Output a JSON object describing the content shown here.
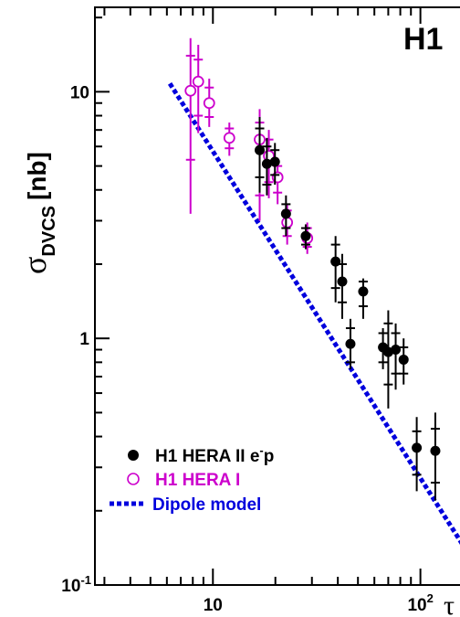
{
  "chart_data": {
    "type": "scatter",
    "title": "H1",
    "ylabel": "σ",
    "ylabel_sub": "DVCS",
    "ylabel_unit": "[nb]",
    "xlabel": "τ",
    "xscale": "log",
    "yscale": "log",
    "xlim": [
      2.7,
      190
    ],
    "ylim": [
      0.1,
      22
    ],
    "x_ticks": [
      {
        "value": 10,
        "base": "10",
        "exp": ""
      },
      {
        "value": 100,
        "base": "10",
        "exp": "2"
      }
    ],
    "y_ticks": [
      {
        "value": 0.1,
        "base": "10",
        "exp": "-1"
      },
      {
        "value": 1,
        "base": "1",
        "exp": ""
      },
      {
        "value": 10,
        "base": "10",
        "exp": ""
      }
    ],
    "series": [
      {
        "name": "H1 HERA II e⁻p",
        "legend_main": "H1 HERA II e",
        "legend_sup": "-",
        "legend_tail": "p",
        "color": "#000000",
        "marker": "filled-circle",
        "points": [
          {
            "x": 16.8,
            "y": 5.8,
            "lo": 3.9,
            "hi": 7.9,
            "lo2": 4.5,
            "hi2": 7.1
          },
          {
            "x": 18.2,
            "y": 5.1,
            "lo": 3.8,
            "hi": 6.5,
            "lo2": 4.2,
            "hi2": 6.0
          },
          {
            "x": 19.9,
            "y": 5.2,
            "lo": 4.2,
            "hi": 6.2,
            "lo2": 4.6,
            "hi2": 5.8
          },
          {
            "x": 22.5,
            "y": 3.2,
            "lo": 2.6,
            "hi": 3.8,
            "lo2": 2.8,
            "hi2": 3.5
          },
          {
            "x": 28.0,
            "y": 2.6,
            "lo": 2.3,
            "hi": 2.9,
            "lo2": 2.4,
            "hi2": 2.8
          },
          {
            "x": 39.0,
            "y": 2.05,
            "lo": 1.4,
            "hi": 2.6,
            "lo2": 1.6,
            "hi2": 2.4
          },
          {
            "x": 42.0,
            "y": 1.7,
            "lo": 1.2,
            "hi": 2.2,
            "lo2": 1.4,
            "hi2": 2.0
          },
          {
            "x": 46.0,
            "y": 0.95,
            "lo": 0.75,
            "hi": 1.2,
            "lo2": 0.8,
            "hi2": 1.1
          },
          {
            "x": 53.0,
            "y": 1.55,
            "lo": 1.2,
            "hi": 1.75,
            "lo2": 1.35,
            "hi2": 1.7
          },
          {
            "x": 66.0,
            "y": 0.92,
            "lo": 0.75,
            "hi": 1.1,
            "lo2": 0.8,
            "hi2": 1.05
          },
          {
            "x": 70.0,
            "y": 0.88,
            "lo": 0.52,
            "hi": 1.3,
            "lo2": 0.65,
            "hi2": 1.15
          },
          {
            "x": 76.0,
            "y": 0.9,
            "lo": 0.62,
            "hi": 1.15,
            "lo2": 0.72,
            "hi2": 1.05
          },
          {
            "x": 83.0,
            "y": 0.82,
            "lo": 0.65,
            "hi": 1.0,
            "lo2": 0.72,
            "hi2": 0.92
          },
          {
            "x": 96.0,
            "y": 0.36,
            "lo": 0.24,
            "hi": 0.48,
            "lo2": 0.28,
            "hi2": 0.42
          },
          {
            "x": 118.0,
            "y": 0.35,
            "lo": 0.22,
            "hi": 0.5,
            "lo2": 0.26,
            "hi2": 0.43
          }
        ]
      },
      {
        "name": "H1 HERA I",
        "color": "#cc00cc",
        "marker": "open-circle",
        "points": [
          {
            "x": 7.8,
            "y": 10.1,
            "lo": 3.2,
            "hi": 16.5,
            "lo2": 5.3,
            "hi2": 14.0
          },
          {
            "x": 8.5,
            "y": 11.0,
            "lo": 6.8,
            "hi": 15.5,
            "lo2": 8.0,
            "hi2": 13.5
          },
          {
            "x": 9.6,
            "y": 9.0,
            "lo": 7.2,
            "hi": 11.3,
            "lo2": 7.9,
            "hi2": 10.4
          },
          {
            "x": 12.0,
            "y": 6.5,
            "lo": 5.5,
            "hi": 7.5,
            "lo2": 5.9,
            "hi2": 7.1
          },
          {
            "x": 16.8,
            "y": 6.4,
            "lo": 3.0,
            "hi": 8.5,
            "lo2": 3.8,
            "hi2": 7.5
          },
          {
            "x": 18.6,
            "y": 5.5,
            "lo": 3.7,
            "hi": 7.0,
            "lo2": 4.3,
            "hi2": 6.4
          },
          {
            "x": 20.5,
            "y": 4.5,
            "lo": 3.5,
            "hi": 5.4,
            "lo2": 3.9,
            "hi2": 5.0
          },
          {
            "x": 22.8,
            "y": 2.95,
            "lo": 2.4,
            "hi": 3.5,
            "lo2": 2.6,
            "hi2": 3.3
          },
          {
            "x": 28.5,
            "y": 2.55,
            "lo": 2.2,
            "hi": 2.95,
            "lo2": 2.35,
            "hi2": 2.8
          }
        ]
      },
      {
        "name": "Dipole model",
        "color": "#0000dd",
        "marker": "dotted-line",
        "line": {
          "x0": 6.2,
          "y0": 10.8,
          "slope": -1.325,
          "x1": 190
        }
      }
    ],
    "legend_position": "bottom-left"
  }
}
